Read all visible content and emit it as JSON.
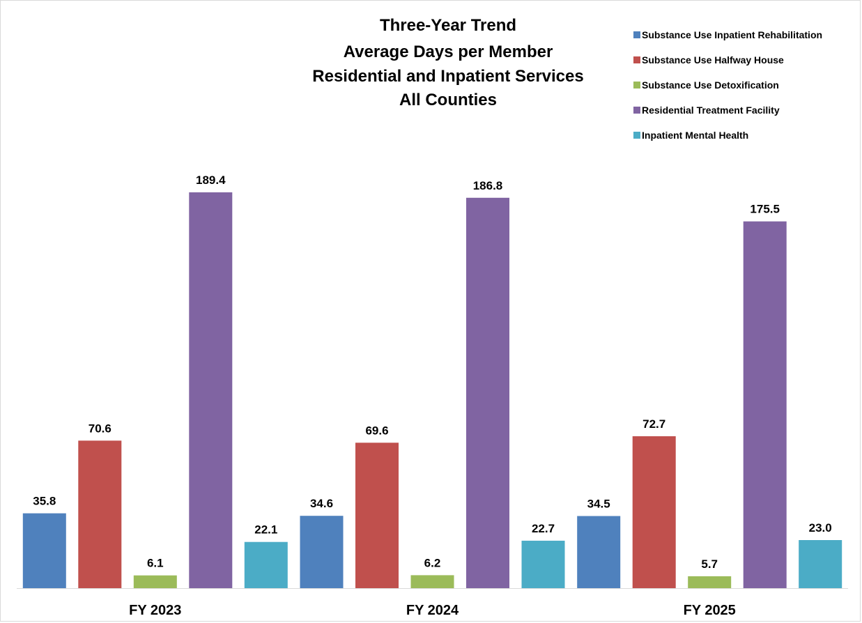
{
  "chart_data": {
    "type": "bar",
    "title_lines": [
      "Three-Year Trend",
      "Average Days per Member",
      "Residential and Inpatient Services",
      "All Counties"
    ],
    "categories": [
      "FY 2023",
      "FY 2024",
      "FY 2025"
    ],
    "series": [
      {
        "name": "Substance Use Inpatient Rehabilitation",
        "color": "#4F81BD",
        "values": [
          35.8,
          34.6,
          34.5
        ]
      },
      {
        "name": "Substance Use Halfway House",
        "color": "#C0504D",
        "values": [
          70.6,
          69.6,
          72.7
        ]
      },
      {
        "name": "Substance Use Detoxification",
        "color": "#9BBB59",
        "values": [
          6.1,
          6.2,
          5.7
        ]
      },
      {
        "name": "Residential Treatment Facility",
        "color": "#8064A2",
        "values": [
          189.4,
          186.8,
          175.5
        ]
      },
      {
        "name": "Inpatient Mental Health",
        "color": "#4BACC6",
        "values": [
          22.1,
          22.7,
          23.0
        ]
      }
    ],
    "value_format_decimals": 1,
    "ylim": [
      0,
      189.4
    ],
    "grid": false,
    "legend_position": "top-right",
    "xlabel": "",
    "ylabel": ""
  }
}
